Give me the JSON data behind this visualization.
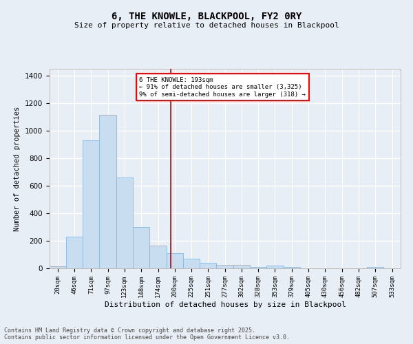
{
  "title": "6, THE KNOWLE, BLACKPOOL, FY2 0RY",
  "subtitle": "Size of property relative to detached houses in Blackpool",
  "xlabel": "Distribution of detached houses by size in Blackpool",
  "ylabel": "Number of detached properties",
  "footer_line1": "Contains HM Land Registry data © Crown copyright and database right 2025.",
  "footer_line2": "Contains public sector information licensed under the Open Government Licence v3.0.",
  "annotation_line1": "6 THE KNOWLE: 193sqm",
  "annotation_line2": "← 91% of detached houses are smaller (3,325)",
  "annotation_line3": "9% of semi-detached houses are larger (318) →",
  "bar_color": "#c8ddf0",
  "bar_edge_color": "#89b8d8",
  "bg_color": "#e8eef5",
  "grid_color": "#ffffff",
  "vline_x": 193,
  "vline_color": "#cc0000",
  "categories": [
    "20sqm",
    "46sqm",
    "71sqm",
    "97sqm",
    "123sqm",
    "148sqm",
    "174sqm",
    "200sqm",
    "225sqm",
    "251sqm",
    "277sqm",
    "302sqm",
    "328sqm",
    "353sqm",
    "379sqm",
    "405sqm",
    "430sqm",
    "456sqm",
    "482sqm",
    "507sqm",
    "533sqm"
  ],
  "bin_left": [
    7.5,
    33,
    58.5,
    84,
    109.5,
    135,
    161,
    187,
    212.5,
    238,
    263.5,
    289.5,
    315,
    340.5,
    366,
    391.5,
    417.5,
    443,
    468.5,
    494.5,
    520
  ],
  "bin_right": [
    33,
    58.5,
    84,
    109.5,
    135,
    161,
    187,
    212.5,
    238,
    263.5,
    289.5,
    315,
    340.5,
    366,
    391.5,
    417.5,
    443,
    468.5,
    494.5,
    520,
    546
  ],
  "values": [
    15,
    230,
    930,
    1115,
    660,
    300,
    165,
    110,
    70,
    40,
    25,
    25,
    10,
    20,
    10,
    0,
    0,
    0,
    0,
    10,
    0
  ],
  "ylim": [
    0,
    1450
  ],
  "yticks": [
    0,
    200,
    400,
    600,
    800,
    1000,
    1200,
    1400
  ],
  "xlim_left": 7.5,
  "xlim_right": 546
}
